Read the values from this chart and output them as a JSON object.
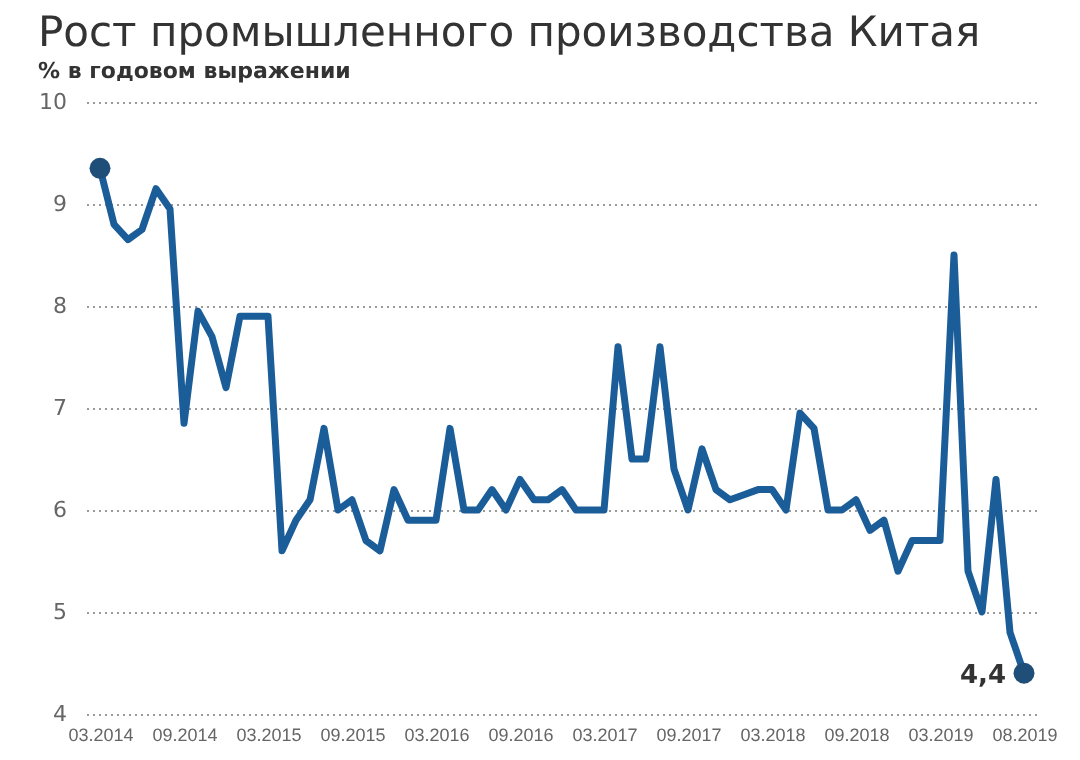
{
  "chart_data": {
    "type": "line",
    "title": "Рост промышленного производства Китая",
    "subtitle": "% в годовом выражении",
    "categories": [
      "03.2014",
      null,
      null,
      null,
      null,
      null,
      "09.2014",
      null,
      null,
      null,
      null,
      null,
      "03.2015",
      null,
      null,
      null,
      null,
      null,
      "09.2015",
      null,
      null,
      null,
      null,
      null,
      "03.2016",
      null,
      null,
      null,
      null,
      null,
      "09.2016",
      null,
      null,
      null,
      null,
      null,
      "03.2017",
      null,
      null,
      null,
      null,
      null,
      "09.2017",
      null,
      null,
      null,
      null,
      null,
      "03.2018",
      null,
      null,
      null,
      null,
      null,
      "09.2018",
      null,
      null,
      null,
      null,
      null,
      "03.2019",
      null,
      null,
      null,
      null,
      null,
      "08.2019"
    ],
    "series": [
      {
        "color": "#1b5d98",
        "values": [
          9.35,
          8.8,
          8.65,
          8.75,
          9.15,
          8.95,
          6.85,
          7.95,
          7.7,
          7.2,
          7.9,
          7.9,
          7.9,
          5.6,
          5.9,
          6.1,
          6.8,
          6.0,
          6.1,
          5.7,
          5.6,
          6.2,
          5.9,
          5.9,
          5.9,
          6.8,
          6.0,
          6.0,
          6.2,
          6.0,
          6.3,
          6.1,
          6.1,
          6.2,
          6.0,
          6.0,
          6.0,
          7.6,
          6.5,
          6.5,
          7.6,
          6.4,
          6.0,
          6.6,
          6.2,
          6.1,
          6.15,
          6.2,
          6.2,
          6.0,
          6.95,
          6.8,
          6.0,
          6.0,
          6.1,
          5.8,
          5.9,
          5.4,
          5.7,
          5.7,
          5.7,
          8.5,
          5.4,
          5.0,
          6.3,
          4.8,
          4.4
        ]
      },
      {
        "type": "scatter",
        "color": "#1f4e79",
        "values": [
          9.35,
          null,
          null,
          null,
          null,
          null,
          null,
          null,
          null,
          null,
          null,
          null,
          null,
          null,
          null,
          null,
          null,
          null,
          null,
          null,
          null,
          null,
          null,
          null,
          null,
          null,
          null,
          null,
          null,
          null,
          null,
          null,
          null,
          null,
          null,
          null,
          null,
          null,
          null,
          null,
          null,
          null,
          null,
          null,
          null,
          null,
          null,
          null,
          null,
          null,
          null,
          null,
          null,
          null,
          null,
          null,
          null,
          null,
          null,
          null,
          null,
          null,
          null,
          null,
          null,
          null,
          4.4
        ]
      }
    ],
    "annotations": [
      {
        "text": "4,4",
        "x": "08.2019",
        "y": 4.4
      }
    ],
    "ylim": [
      4,
      10
    ],
    "yticks": [
      4,
      5,
      6,
      7,
      8,
      9,
      10
    ],
    "grid": "y",
    "line_style": "solid"
  }
}
